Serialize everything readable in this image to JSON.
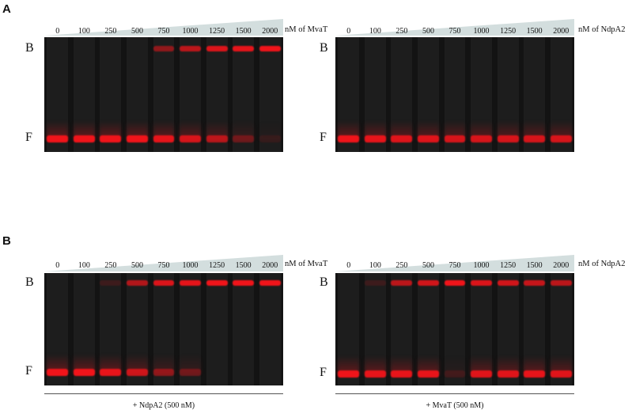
{
  "panels": [
    {
      "letter": "A",
      "gels": [
        {
          "concentrations": [
            "0",
            "100",
            "250",
            "500",
            "750",
            "1000",
            "1250",
            "1500",
            "2000"
          ],
          "unit": "nM of MvaT",
          "bound_label": "B",
          "free_label": "F",
          "bound_intensity": [
            0,
            0,
            0,
            0,
            0.55,
            0.75,
            0.9,
            0.95,
            1.0
          ],
          "free_intensity": [
            1.0,
            1.0,
            1.0,
            1.0,
            0.95,
            0.85,
            0.7,
            0.35,
            0.1
          ],
          "condition": ""
        },
        {
          "concentrations": [
            "0",
            "100",
            "250",
            "500",
            "750",
            "1000",
            "1250",
            "1500",
            "2000"
          ],
          "unit": "nM of NdpA2",
          "bound_label": "B",
          "free_label": "F",
          "bound_intensity": [
            0,
            0,
            0,
            0,
            0,
            0,
            0,
            0,
            0
          ],
          "free_intensity": [
            1.0,
            0.95,
            0.9,
            0.9,
            0.85,
            0.85,
            0.85,
            0.85,
            0.85
          ],
          "condition": ""
        }
      ]
    },
    {
      "letter": "B",
      "gels": [
        {
          "concentrations": [
            "0",
            "100",
            "250",
            "500",
            "750",
            "1000",
            "1250",
            "1500",
            "2000"
          ],
          "unit": "nM of MvaT",
          "bound_label": "B",
          "free_label": "F",
          "bound_intensity": [
            0,
            0,
            0.15,
            0.7,
            0.9,
            0.95,
            1.0,
            1.0,
            1.0
          ],
          "free_intensity": [
            1.0,
            1.0,
            0.95,
            0.8,
            0.5,
            0.35,
            0,
            0,
            0
          ],
          "condition": "+ NdpA2 (500 nM)"
        },
        {
          "concentrations": [
            "0",
            "100",
            "250",
            "500",
            "750",
            "1000",
            "1250",
            "1500",
            "2000"
          ],
          "unit": "nM of NdpA2",
          "bound_label": "B",
          "free_label": "F",
          "bound_intensity": [
            0,
            0.15,
            0.75,
            0.85,
            1.0,
            0.9,
            0.85,
            0.8,
            0.75
          ],
          "free_intensity": [
            1.0,
            0.95,
            0.95,
            0.95,
            0.15,
            0.9,
            0.9,
            0.95,
            0.9
          ],
          "condition": "+ MvaT (500 nM)"
        }
      ]
    }
  ]
}
